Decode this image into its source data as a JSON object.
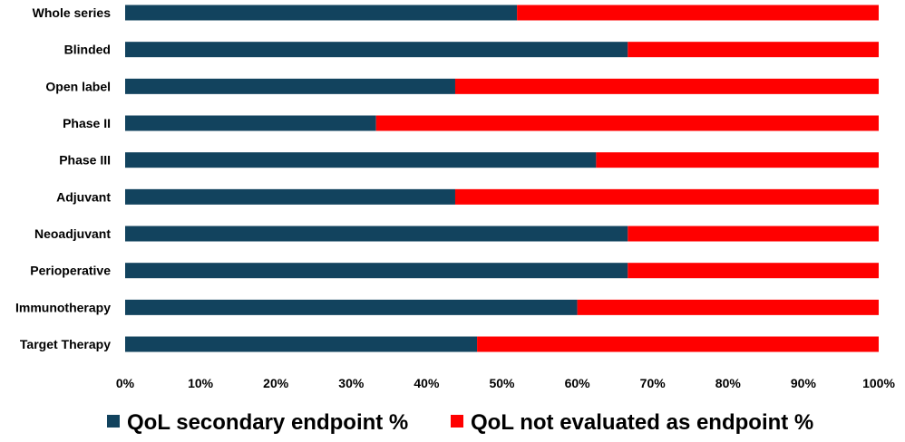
{
  "chart_data": {
    "type": "bar",
    "orientation": "horizontal",
    "stacking": "percent",
    "categories": [
      "Whole series",
      "Blinded",
      "Open label",
      "Phase II",
      "Phase III",
      "Adjuvant",
      "Neoadjuvant",
      "Perioperative",
      "Immunotherapy",
      "Target Therapy"
    ],
    "series": [
      {
        "name": "QoL secondary endpoint %",
        "color": "#12435e",
        "values": [
          52,
          66.7,
          43.8,
          33.3,
          62.5,
          43.8,
          66.7,
          66.7,
          60,
          46.7
        ]
      },
      {
        "name": "QoL not evaluated as endpoint %",
        "color": "#ff0000",
        "values": [
          48,
          33.3,
          56.2,
          66.7,
          37.5,
          56.2,
          33.3,
          33.3,
          40,
          53.3
        ]
      }
    ],
    "x_ticks": [
      "0%",
      "10%",
      "20%",
      "30%",
      "40%",
      "50%",
      "60%",
      "70%",
      "80%",
      "90%",
      "100%"
    ],
    "xlim": [
      0,
      100
    ],
    "title": "",
    "xlabel": "",
    "ylabel": "",
    "grid": false,
    "legend_position": "bottom"
  }
}
